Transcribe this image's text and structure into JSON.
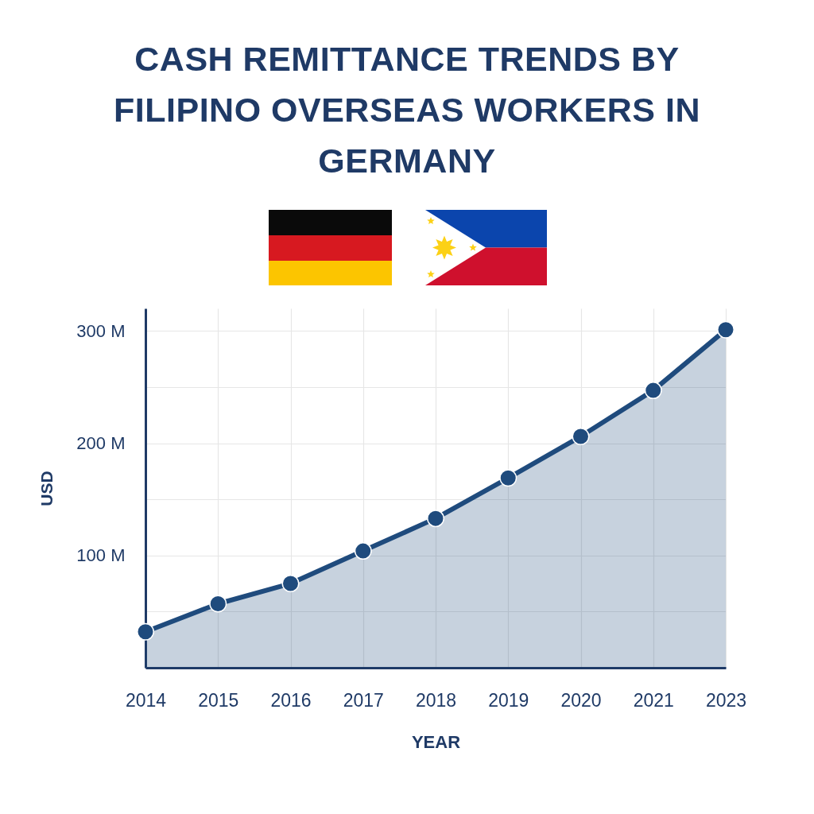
{
  "chart_data": {
    "type": "area",
    "title": "CASH REMITTANCE TRENDS BY FILIPINO OVERSEAS WORKERS IN GERMANY",
    "xlabel": "YEAR",
    "ylabel": "USD",
    "categories": [
      "2014",
      "2015",
      "2016",
      "2017",
      "2018",
      "2019",
      "2020",
      "2021",
      "2023"
    ],
    "series": [
      {
        "color": "#1f4b7d",
        "values": [
          32,
          57,
          75,
          104,
          133,
          169,
          206,
          247,
          301
        ]
      }
    ],
    "ylim": [
      0,
      320
    ],
    "yticks": [
      {
        "value": 50,
        "label": null
      },
      {
        "value": 100,
        "label": "100 M"
      },
      {
        "value": 150,
        "label": null
      },
      {
        "value": 200,
        "label": "200 M"
      },
      {
        "value": 250,
        "label": null
      },
      {
        "value": 300,
        "label": "300 M"
      }
    ],
    "grid": true,
    "marker": "circle",
    "line_style": "solid"
  }
}
